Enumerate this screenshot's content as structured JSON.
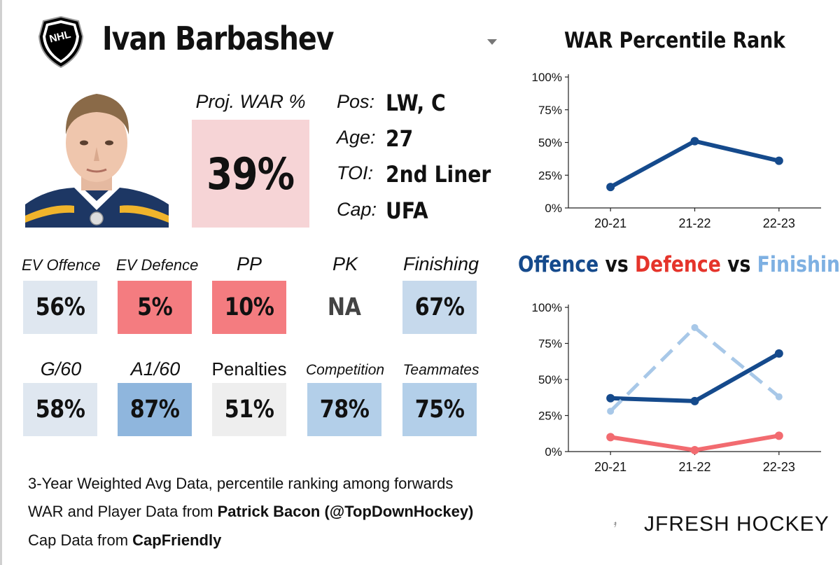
{
  "player": {
    "name": "Ivan Barbashev",
    "proj_war_label": "Proj. WAR %",
    "proj_war_value": "39%",
    "info": [
      {
        "key": "Pos:",
        "value": "LW, C"
      },
      {
        "key": "Age:",
        "value": "27"
      },
      {
        "key": "TOI:",
        "value": "2nd Liner"
      },
      {
        "key": "Cap:",
        "value": "UFA"
      }
    ]
  },
  "metrics_row1": [
    {
      "label": "EV Offence",
      "value": "56%",
      "color": "#dfe7f0"
    },
    {
      "label": "EV Defence",
      "value": "5%",
      "color": "#f47c80"
    },
    {
      "label": "PP",
      "value": "10%",
      "color": "#f47c80"
    },
    {
      "label": "PK",
      "value": "NA",
      "color": "#ffffff"
    },
    {
      "label": "Finishing",
      "value": "67%",
      "color": "#c6d9ec"
    }
  ],
  "metrics_row2": [
    {
      "label": "G/60",
      "value": "58%",
      "color": "#dfe7f0"
    },
    {
      "label": "A1/60",
      "value": "87%",
      "color": "#8fb6dd"
    },
    {
      "label": "Penalties",
      "value": "51%",
      "color": "#eeeeee"
    },
    {
      "label": "Competition",
      "value": "78%",
      "color": "#b3cfe9"
    },
    {
      "label": "Teammates",
      "value": "75%",
      "color": "#b3cfe9"
    }
  ],
  "footer": {
    "line1": "3-Year Weighted Avg Data, percentile ranking among forwards",
    "line2_prefix": "WAR and Player Data from ",
    "line2_bold": "Patrick Bacon (@TopDownHockey)",
    "line3_prefix": "Cap Data from ",
    "line3_bold": "CapFriendly"
  },
  "brand": {
    "name": "JFRESH HOCKEY"
  },
  "chart_data": [
    {
      "type": "line",
      "title": "WAR Percentile Rank",
      "categories": [
        "20-21",
        "21-22",
        "22-23"
      ],
      "series": [
        {
          "values": [
            16,
            51,
            36
          ],
          "color": "#154a8c",
          "style": "solid"
        }
      ],
      "y_ticks": [
        "0%",
        "25%",
        "50%",
        "75%",
        "100%"
      ],
      "ylim": [
        0,
        100
      ],
      "grid": false
    },
    {
      "type": "line",
      "title_parts": [
        {
          "text": "Offence",
          "color": "#154a8c"
        },
        {
          "text": " vs ",
          "color": "#111111"
        },
        {
          "text": "Defence",
          "color": "#e5342b"
        },
        {
          "text": " vs ",
          "color": "#111111"
        },
        {
          "text": "Finishing",
          "color": "#7eb0e2"
        }
      ],
      "categories": [
        "20-21",
        "21-22",
        "22-23"
      ],
      "series": [
        {
          "values": [
            37,
            35,
            68
          ],
          "color": "#154a8c",
          "style": "solid"
        },
        {
          "values": [
            10,
            1,
            11
          ],
          "color": "#f26b70",
          "style": "solid"
        },
        {
          "values": [
            28,
            86,
            38
          ],
          "color": "#a8c8e8",
          "style": "dashed"
        }
      ],
      "y_ticks": [
        "0%",
        "25%",
        "50%",
        "75%",
        "100%"
      ],
      "ylim": [
        0,
        100
      ],
      "grid": false
    }
  ]
}
